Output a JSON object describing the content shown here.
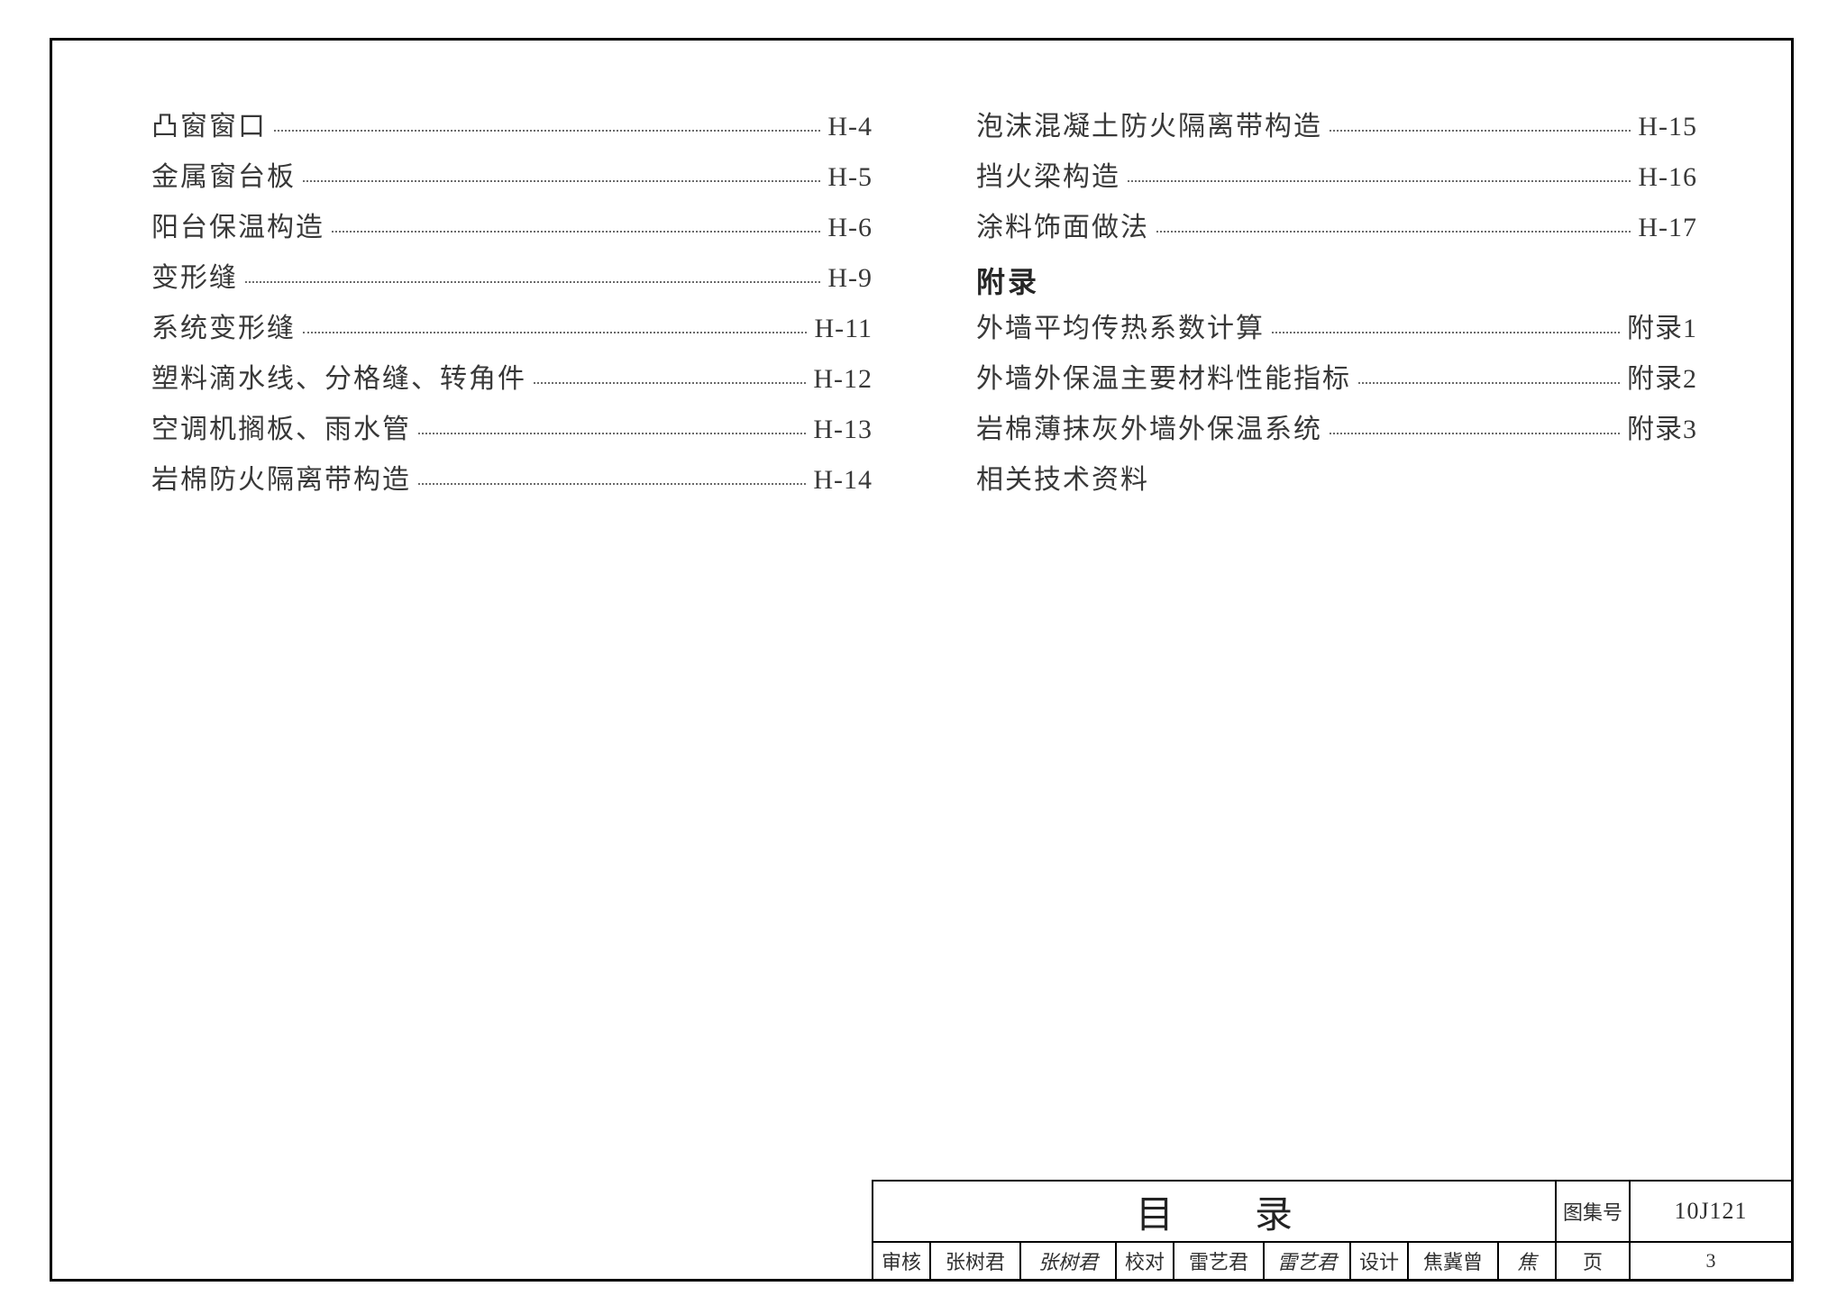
{
  "colors": {
    "border": "#000000",
    "text": "#383838",
    "background": "#ffffff",
    "dots": "#6a6a6a"
  },
  "typography": {
    "body_fontsize": 30,
    "heading_fontsize": 32,
    "title_fontsize": 42,
    "small_fontsize": 22
  },
  "left_column": [
    {
      "label": "凸窗窗口",
      "ref": "H-4"
    },
    {
      "label": "金属窗台板",
      "ref": "H-5"
    },
    {
      "label": "阳台保温构造",
      "ref": "H-6"
    },
    {
      "label": "变形缝",
      "ref": "H-9"
    },
    {
      "label": "系统变形缝",
      "ref": "H-11"
    },
    {
      "label": "塑料滴水线、分格缝、转角件",
      "ref": "H-12"
    },
    {
      "label": "空调机搁板、雨水管",
      "ref": "H-13"
    },
    {
      "label": "岩棉防火隔离带构造",
      "ref": "H-14"
    }
  ],
  "right_column": {
    "items_top": [
      {
        "label": "泡沫混凝土防火隔离带构造",
        "ref": "H-15"
      },
      {
        "label": "挡火梁构造",
        "ref": "H-16"
      },
      {
        "label": "涂料饰面做法",
        "ref": "H-17"
      }
    ],
    "section_heading": "附录",
    "items_appendix": [
      {
        "label": "外墙平均传热系数计算",
        "ref": "附录1"
      },
      {
        "label": "外墙外保温主要材料性能指标",
        "ref": "附录2"
      },
      {
        "label": "岩棉薄抹灰外墙外保温系统",
        "ref": "附录3"
      }
    ],
    "plain_item": "相关技术资料"
  },
  "title_block": {
    "title": "目录",
    "atlas_label": "图集号",
    "atlas_value": "10J121",
    "page_label": "页",
    "page_value": "3",
    "signoff": {
      "review_label": "审核",
      "review_name": "张树君",
      "review_sig": "张树君",
      "check_label": "校对",
      "check_name": "雷艺君",
      "check_sig": "雷艺君",
      "design_label": "设计",
      "design_name": "焦冀曾",
      "design_sig": "焦"
    }
  }
}
